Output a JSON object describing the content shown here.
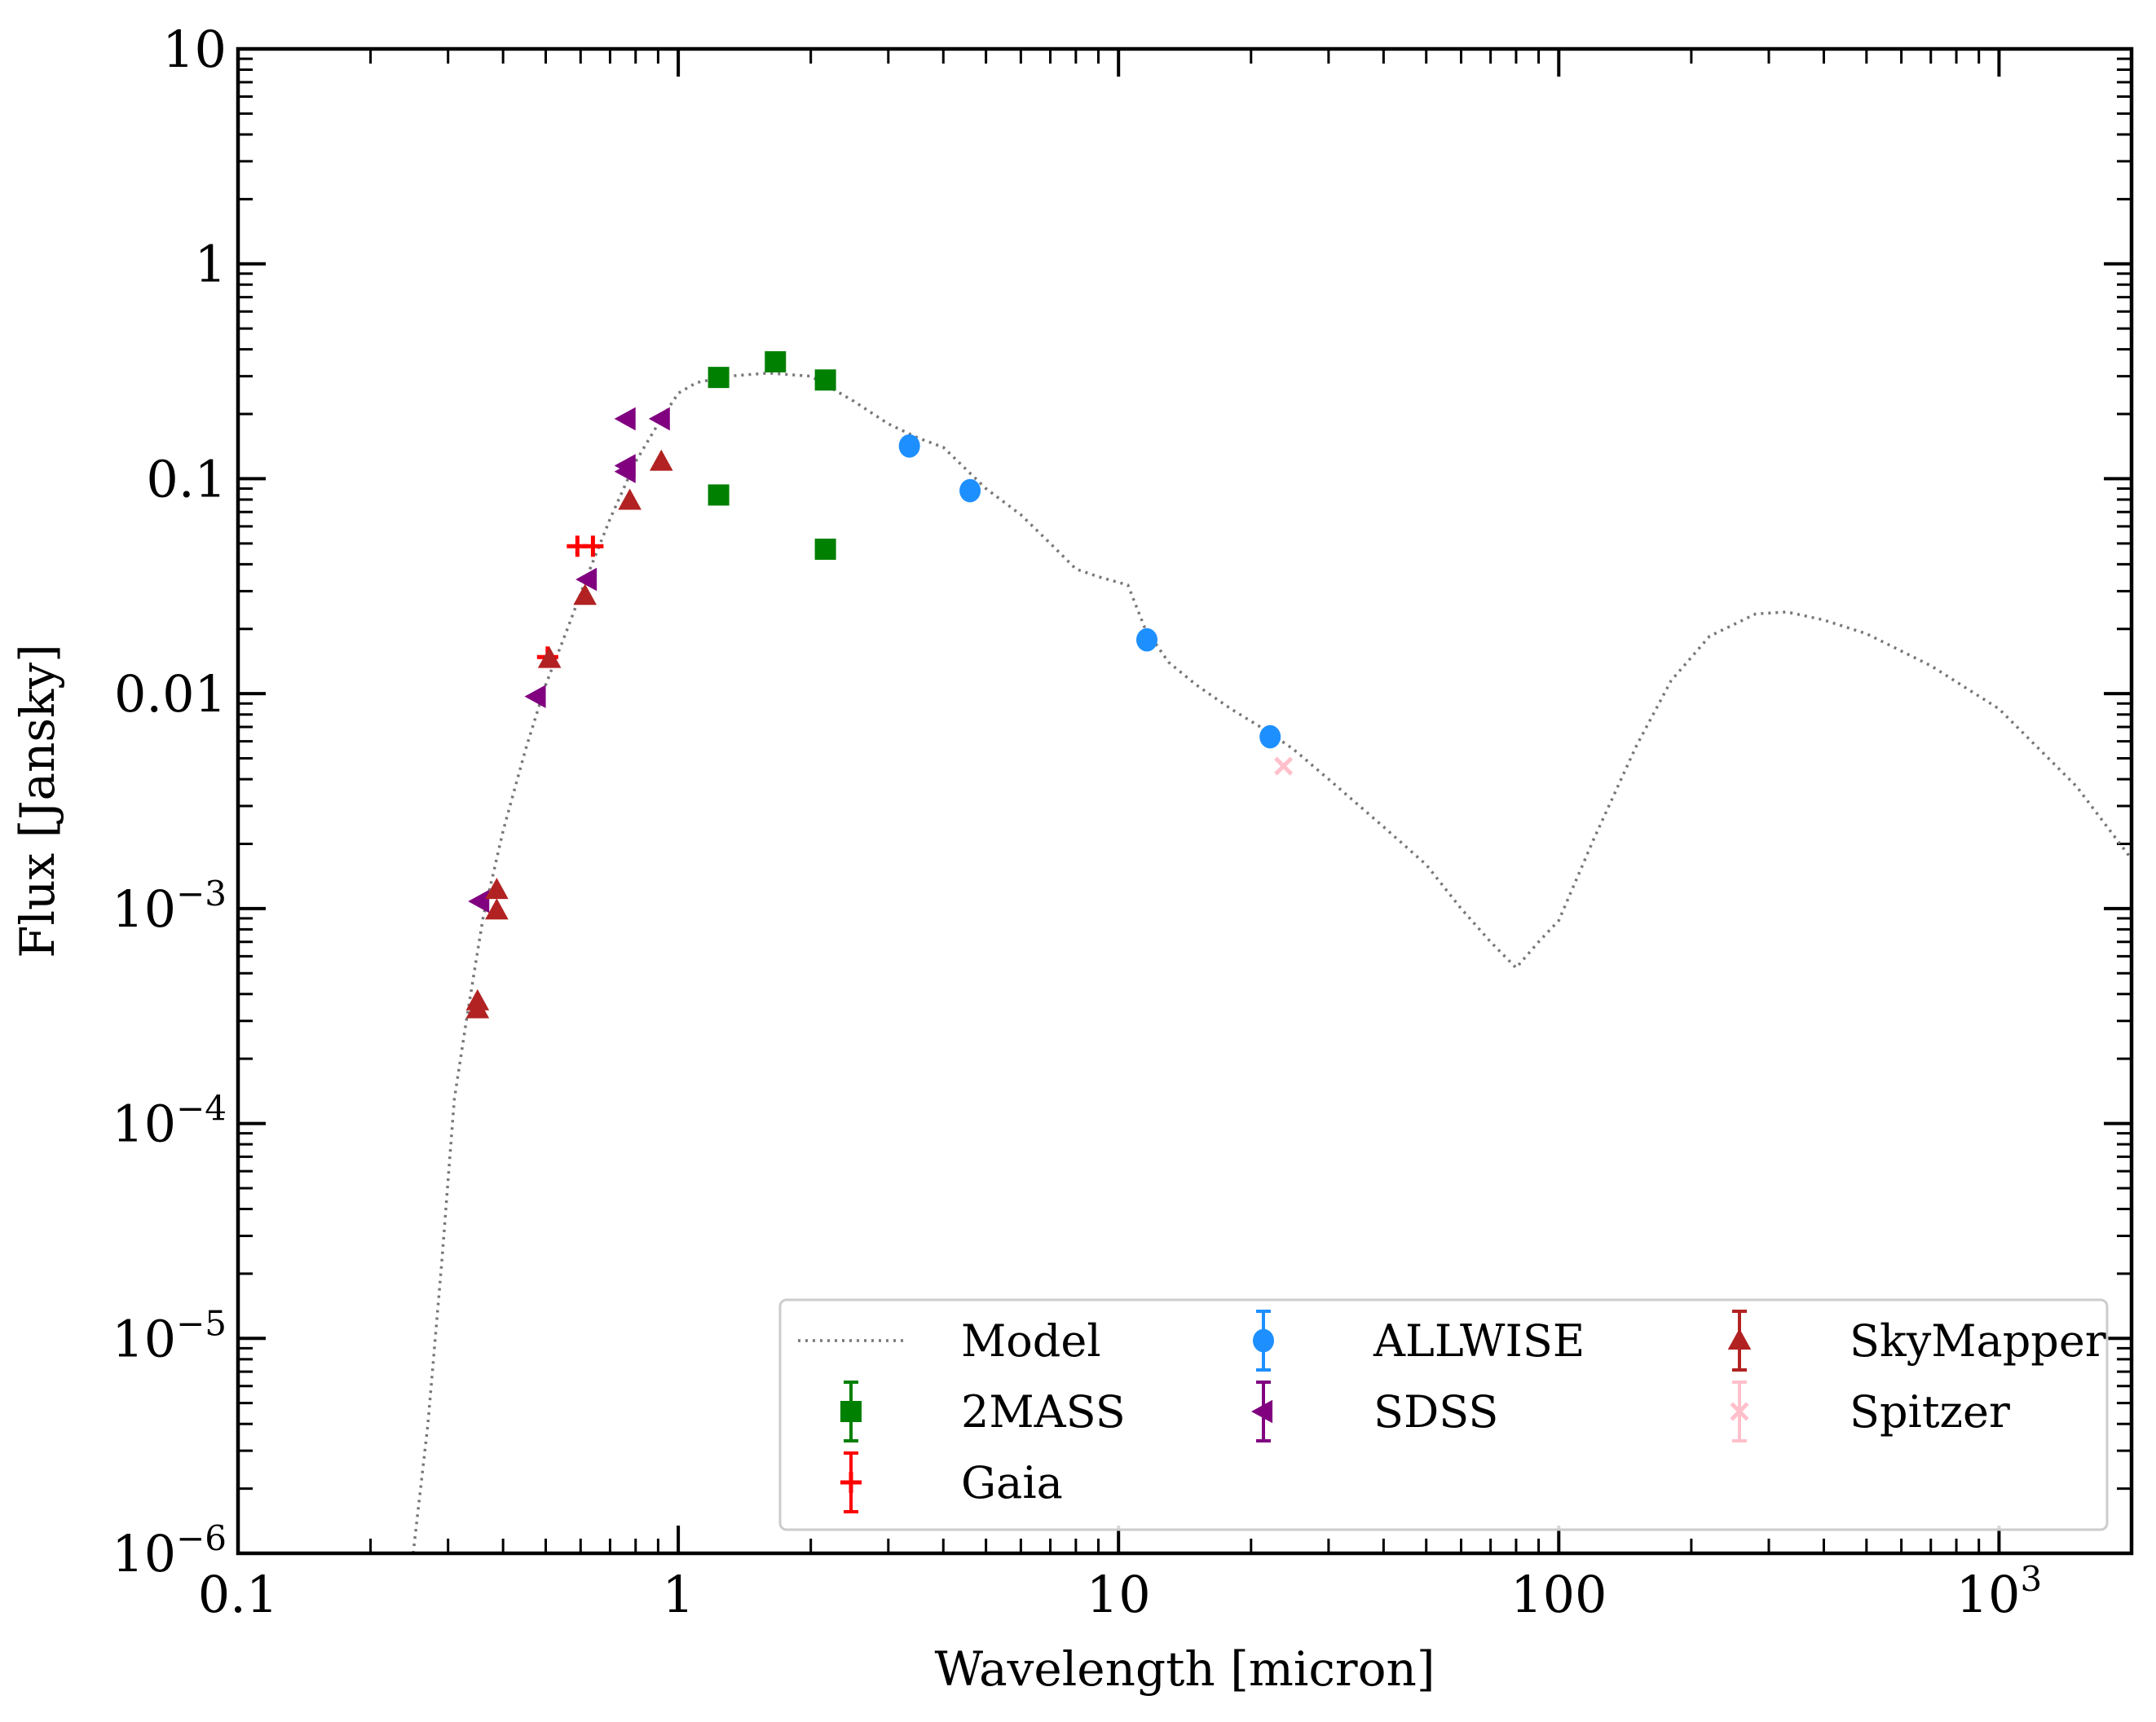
{
  "chart_data": {
    "type": "scatter",
    "title": "",
    "xlabel": "Wavelength [micron]",
    "ylabel": "Flux [Jansky]",
    "xscale": "log",
    "yscale": "log",
    "xlim": [
      0.1,
      2000
    ],
    "ylim": [
      1e-06,
      10
    ],
    "x_ticks": [
      {
        "value": 0.1,
        "label": "0.1"
      },
      {
        "value": 1,
        "label": "1"
      },
      {
        "value": 10,
        "label": "10"
      },
      {
        "value": 100,
        "label": "100"
      },
      {
        "value": 1000,
        "label": "10",
        "sup": "3"
      }
    ],
    "y_ticks": [
      {
        "value": 10,
        "label": "10"
      },
      {
        "value": 1,
        "label": "1"
      },
      {
        "value": 0.1,
        "label": "0.1"
      },
      {
        "value": 0.01,
        "label": "0.01"
      },
      {
        "value": 0.001,
        "label": "10",
        "sup": "−3"
      },
      {
        "value": 0.0001,
        "label": "10",
        "sup": "−4"
      },
      {
        "value": 1e-05,
        "label": "10",
        "sup": "−5"
      },
      {
        "value": 1e-06,
        "label": "10",
        "sup": "−6"
      }
    ],
    "legend_position": "bottom-right",
    "legend_columns": 3,
    "model": {
      "name": "Model",
      "color": "#777777",
      "style": "dotted",
      "x": [
        0.25,
        0.27,
        0.29,
        0.31,
        0.33,
        0.36,
        0.4,
        0.45,
        0.5,
        0.56,
        0.62,
        0.7,
        0.8,
        0.9,
        1.0,
        1.1,
        1.3,
        1.6,
        2.0,
        2.5,
        3.0,
        3.5,
        4.0,
        5.0,
        6.0,
        7.0,
        8.0,
        9.0,
        10.5,
        11.5,
        13.0,
        15.0,
        18.0,
        22.0,
        25.0,
        30.0,
        40.0,
        50.0,
        60.0,
        70.0,
        80.0,
        90.0,
        100.0,
        120.0,
        150.0,
        180.0,
        220.0,
        280.0,
        330.0,
        400.0,
        500.0,
        700.0,
        1000.0,
        1500.0,
        2000.0
      ],
      "y": [
        1e-06,
        4e-06,
        2.2e-05,
        0.00013,
        0.0003,
        0.0009,
        0.0023,
        0.0055,
        0.011,
        0.02,
        0.035,
        0.065,
        0.12,
        0.18,
        0.25,
        0.28,
        0.3,
        0.31,
        0.3,
        0.23,
        0.18,
        0.155,
        0.14,
        0.09,
        0.068,
        0.05,
        0.038,
        0.035,
        0.032,
        0.02,
        0.014,
        0.011,
        0.0085,
        0.0066,
        0.0055,
        0.004,
        0.0024,
        0.0016,
        0.001,
        0.0007,
        0.00053,
        0.0007,
        0.00088,
        0.0021,
        0.0057,
        0.0115,
        0.0185,
        0.0235,
        0.024,
        0.022,
        0.019,
        0.0135,
        0.0085,
        0.0037,
        0.0017
      ]
    },
    "series": [
      {
        "name": "2MASS",
        "marker": "square",
        "color": "#008000",
        "points": [
          [
            1.235,
            0.296
          ],
          [
            1.662,
            0.35
          ],
          [
            2.159,
            0.288
          ],
          [
            1.235,
            0.084
          ],
          [
            2.159,
            0.047
          ]
        ]
      },
      {
        "name": "Gaia",
        "marker": "plus",
        "color": "#ff0000",
        "points": [
          [
            0.59,
            0.0485
          ],
          [
            0.64,
            0.0485
          ],
          [
            0.505,
            0.0148
          ]
        ]
      },
      {
        "name": "ALLWISE",
        "marker": "circle",
        "color": "#1e8fff",
        "points": [
          [
            3.35,
            0.142
          ],
          [
            4.6,
            0.088
          ],
          [
            11.6,
            0.0178
          ],
          [
            22.1,
            0.0063
          ]
        ]
      },
      {
        "name": "SDSS",
        "marker": "triangle-left",
        "color": "#800080",
        "points": [
          [
            0.355,
            0.00108
          ],
          [
            0.477,
            0.0097
          ],
          [
            0.623,
            0.034
          ],
          [
            0.763,
            0.19
          ],
          [
            0.913,
            0.19
          ],
          [
            0.763,
            0.115
          ],
          [
            0.763,
            0.108
          ]
        ]
      },
      {
        "name": "SkyMapper",
        "marker": "triangle-up",
        "color": "#b22222",
        "points": [
          [
            0.35,
            0.00037
          ],
          [
            0.35,
            0.00034
          ],
          [
            0.387,
            0.00122
          ],
          [
            0.387,
            0.00098
          ],
          [
            0.51,
            0.0145
          ],
          [
            0.614,
            0.0285
          ],
          [
            0.776,
            0.079
          ],
          [
            0.915,
            0.12
          ]
        ]
      },
      {
        "name": "Spitzer",
        "marker": "x",
        "color": "#ffc0cb",
        "points": [
          [
            23.7,
            0.0046
          ]
        ]
      }
    ]
  }
}
